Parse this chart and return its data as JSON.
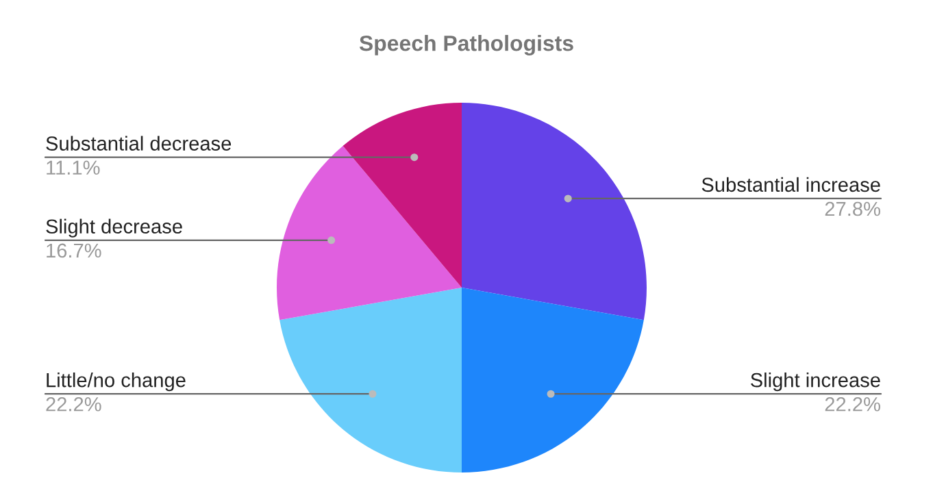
{
  "chart_data": {
    "type": "pie",
    "title": "Speech Pathologists",
    "categories": [
      "Substantial increase",
      "Slight increase",
      "Little/no change",
      "Slight decrease",
      "Substantial decrease"
    ],
    "values": [
      27.8,
      22.2,
      22.2,
      16.7,
      11.1
    ],
    "value_labels": [
      "27.8%",
      "22.2%",
      "22.2%",
      "16.7%",
      "11.1%"
    ],
    "colors": [
      "#6442e8",
      "#1e86fb",
      "#69cdfb",
      "#e05fdf",
      "#c9177f"
    ]
  }
}
